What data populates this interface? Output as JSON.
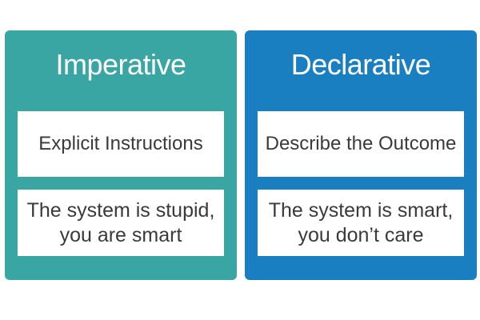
{
  "left_panel": {
    "title": "Imperative",
    "color": "#3aa6a3",
    "card1": "Explicit Instructions",
    "card2_line1": "The system is stupid,",
    "card2_line2": "you are smart"
  },
  "right_panel": {
    "title": "Declarative",
    "color": "#1a7fc1",
    "card1": "Describe the Outcome",
    "card2_line1": "The system is smart,",
    "card2_line2": "you don’t care"
  }
}
